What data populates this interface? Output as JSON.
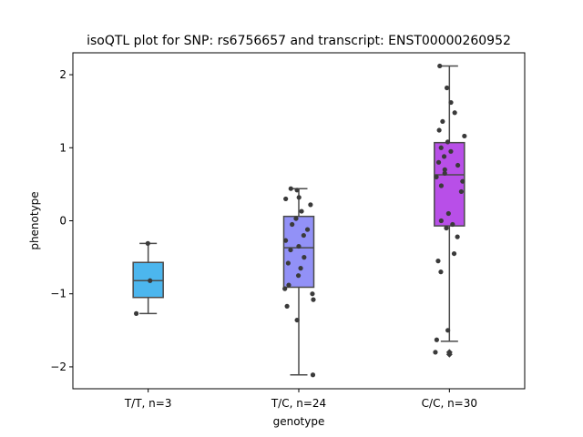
{
  "chart_data": {
    "type": "box",
    "title": "isoQTL plot for SNP: rs6756657 and transcript: ENST00000260952",
    "xlabel": "genotype",
    "ylabel": "phenotype",
    "ylim": [
      -2.3,
      2.3
    ],
    "yticks": [
      -2,
      -1,
      0,
      1,
      2
    ],
    "yticklabels": [
      "−2",
      "−1",
      "0",
      "1",
      "2"
    ],
    "grid": false,
    "point_color": "#3a3a3a",
    "outline_color": "#4a4a4a",
    "categories": [
      "T/T, n=3",
      "T/C, n=24",
      "C/C, n=30"
    ],
    "boxes": [
      {
        "category": "T/T, n=3",
        "color": "#4cb6ee",
        "whisker_low": -1.27,
        "q1": -1.05,
        "median": -0.82,
        "q3": -0.57,
        "whisker_high": -0.31,
        "points": [
          -0.31,
          -0.82,
          -1.27
        ]
      },
      {
        "category": "T/C, n=24",
        "color": "#9291f7",
        "whisker_low": -2.11,
        "q1": -0.91,
        "median": -0.37,
        "q3": 0.06,
        "whisker_high": 0.44,
        "points": [
          0.44,
          0.42,
          0.32,
          0.3,
          0.22,
          0.13,
          0.03,
          -0.05,
          -0.12,
          -0.2,
          -0.27,
          -0.35,
          -0.4,
          -0.5,
          -0.58,
          -0.65,
          -0.75,
          -0.88,
          -0.93,
          -1.0,
          -1.08,
          -1.17,
          -1.36,
          -2.11
        ]
      },
      {
        "category": "C/C, n=30",
        "color": "#b84fe8",
        "whisker_low": -1.65,
        "q1": -0.07,
        "median": 0.63,
        "q3": 1.07,
        "whisker_high": 2.12,
        "points": [
          2.12,
          1.82,
          1.62,
          1.48,
          1.36,
          1.24,
          1.16,
          1.08,
          1.0,
          0.95,
          0.88,
          0.8,
          0.76,
          0.7,
          0.65,
          0.6,
          0.54,
          0.48,
          0.4,
          0.1,
          0.0,
          -0.05,
          -0.1,
          -0.22,
          -0.45,
          -0.55,
          -0.7,
          -1.5,
          -1.63,
          -1.8
        ],
        "outliers": [
          -1.8,
          -1.83
        ]
      }
    ]
  }
}
